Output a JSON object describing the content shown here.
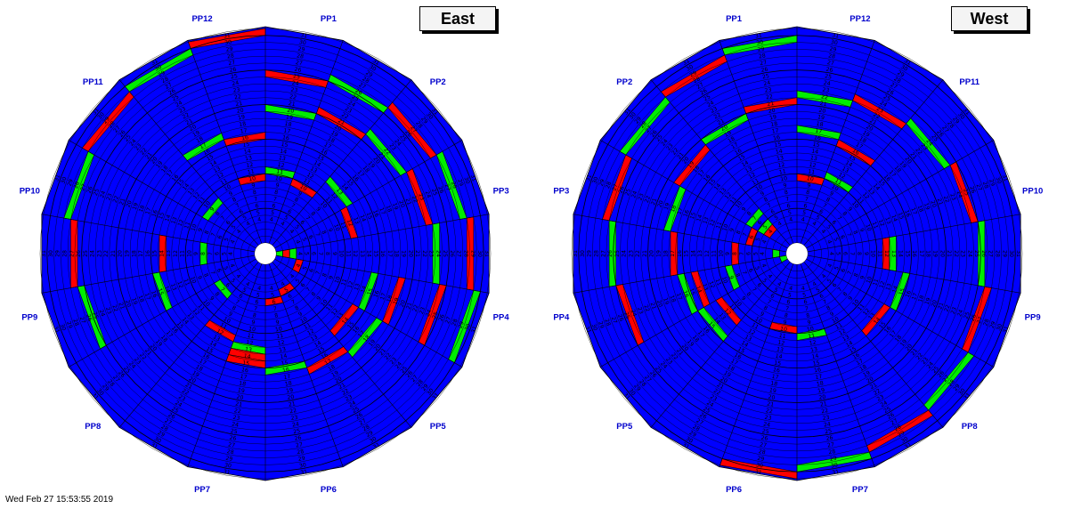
{
  "colors": {
    "background": "#0000ff",
    "red": "#ff0000",
    "green": "#00ee00",
    "pp_label": "#0000cc",
    "grid": "#000000"
  },
  "wheels": [
    {
      "id": "east",
      "title": "East",
      "pp_labels": [
        "PP1",
        "PP2",
        "PP3",
        "PP4",
        "PP5",
        "PP6",
        "PP7",
        "PP8",
        "PP9",
        "PP10",
        "PP11",
        "PP12"
      ],
      "label_order": "clockwise-from-top-right",
      "highlights": [
        {
          "ring": 1,
          "sector": 4,
          "color": "green"
        },
        {
          "ring": 2,
          "sector": 4,
          "color": "red"
        },
        {
          "ring": 3,
          "sector": 4,
          "color": "green"
        },
        {
          "ring": 4,
          "sector": 5,
          "color": "red"
        },
        {
          "ring": 5,
          "sector": 7,
          "color": "red"
        },
        {
          "ring": 6,
          "sector": 8,
          "color": "red"
        },
        {
          "ring": 7,
          "sector": 11,
          "color": "green"
        },
        {
          "ring": 8,
          "sector": 13,
          "color": "green"
        },
        {
          "ring": 9,
          "sector": 15,
          "color": "green"
        },
        {
          "ring": 10,
          "sector": 17,
          "color": "red"
        },
        {
          "ring": 11,
          "sector": 0,
          "color": "green"
        },
        {
          "ring": 10,
          "sector": 1,
          "color": "red"
        },
        {
          "ring": 13,
          "sector": 2,
          "color": "green"
        },
        {
          "ring": 12,
          "sector": 3,
          "color": "red"
        },
        {
          "ring": 15,
          "sector": 5,
          "color": "green"
        },
        {
          "ring": 14,
          "sector": 6,
          "color": "red"
        },
        {
          "ring": 13,
          "sector": 9,
          "color": "green"
        },
        {
          "ring": 12,
          "sector": 10,
          "color": "red"
        },
        {
          "ring": 15,
          "sector": 12,
          "color": "green"
        },
        {
          "ring": 14,
          "sector": 13,
          "color": "red"
        },
        {
          "ring": 17,
          "sector": 16,
          "color": "green"
        },
        {
          "ring": 16,
          "sector": 17,
          "color": "red"
        },
        {
          "ring": 14,
          "sector": 9,
          "color": "red"
        },
        {
          "ring": 15,
          "sector": 9,
          "color": "red"
        },
        {
          "ring": 16,
          "sector": 8,
          "color": "green"
        },
        {
          "ring": 17,
          "sector": 7,
          "color": "red"
        },
        {
          "ring": 18,
          "sector": 6,
          "color": "green"
        },
        {
          "ring": 19,
          "sector": 5,
          "color": "red"
        },
        {
          "ring": 20,
          "sector": 0,
          "color": "green"
        },
        {
          "ring": 21,
          "sector": 1,
          "color": "red"
        },
        {
          "ring": 22,
          "sector": 2,
          "color": "green"
        },
        {
          "ring": 23,
          "sector": 3,
          "color": "red"
        },
        {
          "ring": 24,
          "sector": 4,
          "color": "green"
        },
        {
          "ring": 25,
          "sector": 5,
          "color": "red"
        },
        {
          "ring": 25,
          "sector": 0,
          "color": "red"
        },
        {
          "ring": 26,
          "sector": 1,
          "color": "green"
        },
        {
          "ring": 27,
          "sector": 2,
          "color": "red"
        },
        {
          "ring": 28,
          "sector": 3,
          "color": "green"
        },
        {
          "ring": 29,
          "sector": 4,
          "color": "red"
        },
        {
          "ring": 30,
          "sector": 5,
          "color": "green"
        },
        {
          "ring": 26,
          "sector": 12,
          "color": "green"
        },
        {
          "ring": 27,
          "sector": 13,
          "color": "red"
        },
        {
          "ring": 28,
          "sector": 14,
          "color": "green"
        },
        {
          "ring": 29,
          "sector": 15,
          "color": "red"
        },
        {
          "ring": 30,
          "sector": 16,
          "color": "green"
        },
        {
          "ring": 31,
          "sector": 17,
          "color": "red"
        }
      ]
    },
    {
      "id": "west",
      "title": "West",
      "pp_labels": [
        "PP12",
        "PP11",
        "PP10",
        "PP9",
        "PP8",
        "PP7",
        "PP6",
        "PP5",
        "PP4",
        "PP3",
        "PP2",
        "PP1"
      ],
      "label_order": "clockwise-from-top-right",
      "highlights": [
        {
          "ring": 1,
          "sector": 12,
          "color": "green"
        },
        {
          "ring": 2,
          "sector": 13,
          "color": "green"
        },
        {
          "ring": 4,
          "sector": 15,
          "color": "red"
        },
        {
          "ring": 5,
          "sector": 15,
          "color": "green"
        },
        {
          "ring": 6,
          "sector": 14,
          "color": "red"
        },
        {
          "ring": 7,
          "sector": 15,
          "color": "green"
        },
        {
          "ring": 8,
          "sector": 13,
          "color": "red"
        },
        {
          "ring": 9,
          "sector": 12,
          "color": "green"
        },
        {
          "ring": 10,
          "sector": 9,
          "color": "red"
        },
        {
          "ring": 11,
          "sector": 8,
          "color": "green"
        },
        {
          "ring": 11,
          "sector": 1,
          "color": "green"
        },
        {
          "ring": 10,
          "sector": 0,
          "color": "red"
        },
        {
          "ring": 13,
          "sector": 4,
          "color": "green"
        },
        {
          "ring": 12,
          "sector": 4,
          "color": "red"
        },
        {
          "ring": 15,
          "sector": 5,
          "color": "green"
        },
        {
          "ring": 14,
          "sector": 6,
          "color": "red"
        },
        {
          "ring": 16,
          "sector": 1,
          "color": "red"
        },
        {
          "ring": 17,
          "sector": 0,
          "color": "green"
        },
        {
          "ring": 12,
          "sector": 11,
          "color": "red"
        },
        {
          "ring": 15,
          "sector": 11,
          "color": "green"
        },
        {
          "ring": 14,
          "sector": 12,
          "color": "red"
        },
        {
          "ring": 16,
          "sector": 12,
          "color": "green"
        },
        {
          "ring": 17,
          "sector": 13,
          "color": "red"
        },
        {
          "ring": 18,
          "sector": 14,
          "color": "green"
        },
        {
          "ring": 19,
          "sector": 15,
          "color": "red"
        },
        {
          "ring": 20,
          "sector": 16,
          "color": "green"
        },
        {
          "ring": 21,
          "sector": 17,
          "color": "red"
        },
        {
          "ring": 22,
          "sector": 0,
          "color": "green"
        },
        {
          "ring": 23,
          "sector": 1,
          "color": "red"
        },
        {
          "ring": 24,
          "sector": 2,
          "color": "green"
        },
        {
          "ring": 25,
          "sector": 3,
          "color": "red"
        },
        {
          "ring": 26,
          "sector": 4,
          "color": "green"
        },
        {
          "ring": 27,
          "sector": 5,
          "color": "red"
        },
        {
          "ring": 25,
          "sector": 12,
          "color": "red"
        },
        {
          "ring": 26,
          "sector": 13,
          "color": "green"
        },
        {
          "ring": 27,
          "sector": 14,
          "color": "red"
        },
        {
          "ring": 28,
          "sector": 15,
          "color": "green"
        },
        {
          "ring": 29,
          "sector": 16,
          "color": "red"
        },
        {
          "ring": 30,
          "sector": 17,
          "color": "green"
        },
        {
          "ring": 28,
          "sector": 6,
          "color": "green"
        },
        {
          "ring": 29,
          "sector": 7,
          "color": "red"
        },
        {
          "ring": 30,
          "sector": 8,
          "color": "green"
        },
        {
          "ring": 31,
          "sector": 9,
          "color": "red"
        }
      ]
    }
  ],
  "footer": "Wed Feb 27 15:53:55 2019"
}
